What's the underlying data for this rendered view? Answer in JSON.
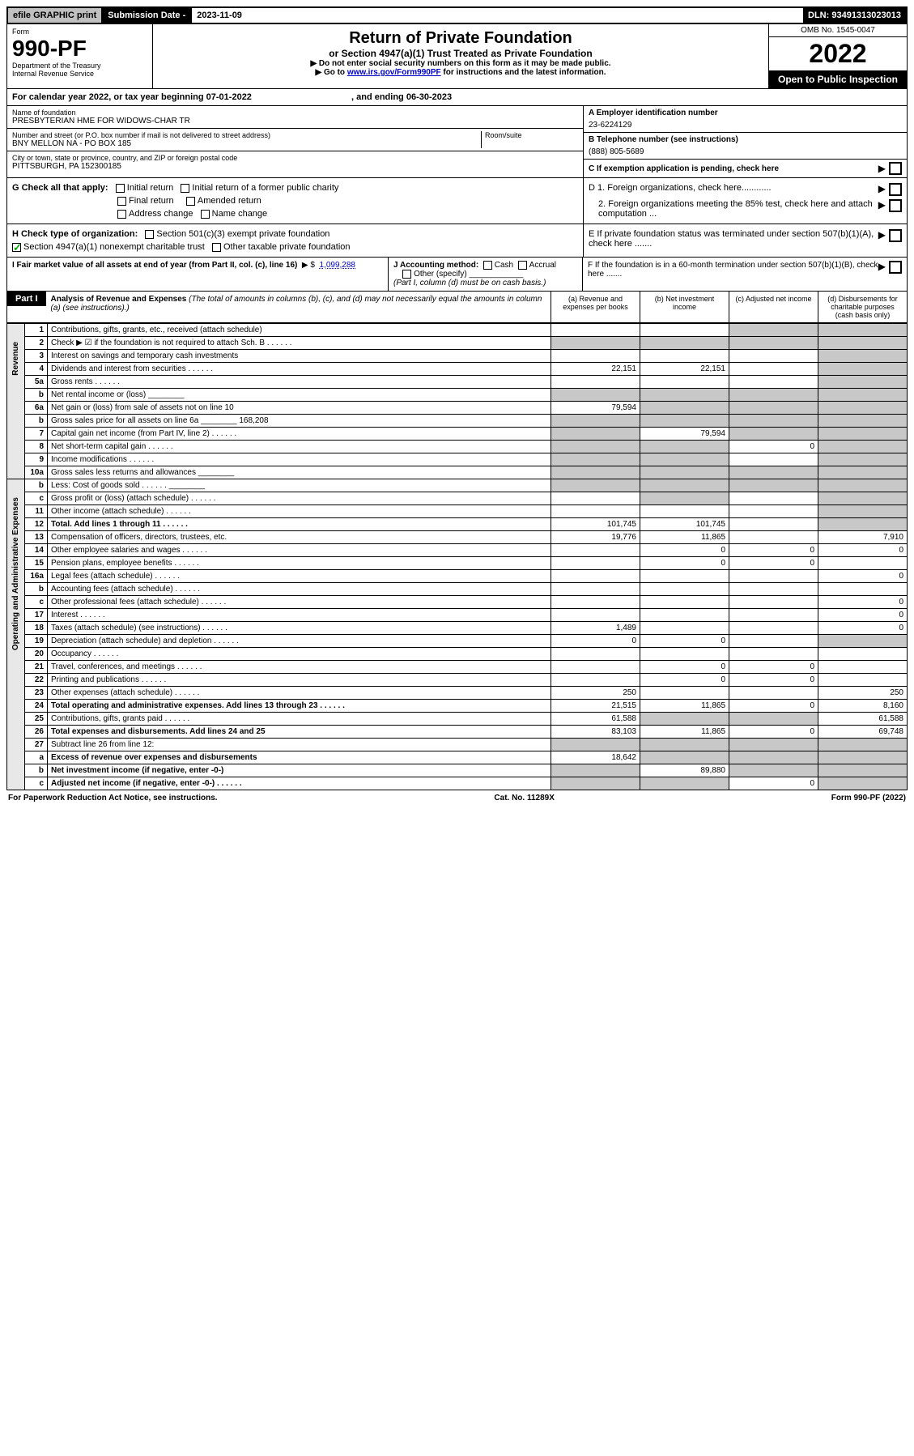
{
  "topbar": {
    "efile": "efile GRAPHIC print",
    "subdate_label": "Submission Date - ",
    "subdate": "2023-11-09",
    "dln": "DLN: 93491313023013"
  },
  "header": {
    "form_word": "Form",
    "form_no": "990-PF",
    "dept": "Department of the Treasury",
    "irs": "Internal Revenue Service",
    "title": "Return of Private Foundation",
    "subtitle": "or Section 4947(a)(1) Trust Treated as Private Foundation",
    "instr1": "▶ Do not enter social security numbers on this form as it may be made public.",
    "instr2_pre": "▶ Go to ",
    "instr2_link": "www.irs.gov/Form990PF",
    "instr2_post": " for instructions and the latest information.",
    "omb": "OMB No. 1545-0047",
    "year": "2022",
    "open": "Open to Public Inspection"
  },
  "cal": {
    "text_a": "For calendar year 2022, or tax year beginning ",
    "begin": "07-01-2022",
    "text_b": " , and ending ",
    "end": "06-30-2023"
  },
  "info": {
    "name_label": "Name of foundation",
    "name": "PRESBYTERIAN HME FOR WIDOWS-CHAR TR",
    "addr_label": "Number and street (or P.O. box number if mail is not delivered to street address)",
    "addr": "BNY MELLON NA - PO BOX 185",
    "room_label": "Room/suite",
    "city_label": "City or town, state or province, country, and ZIP or foreign postal code",
    "city": "PITTSBURGH, PA  152300185",
    "a_label": "A Employer identification number",
    "a": "23-6224129",
    "b_label": "B Telephone number (see instructions)",
    "b": "(888) 805-5689",
    "c_label": "C If exemption application is pending, check here"
  },
  "g": {
    "label": "G Check all that apply:",
    "opts": [
      "Initial return",
      "Initial return of a former public charity",
      "Final return",
      "Amended return",
      "Address change",
      "Name change"
    ]
  },
  "d": {
    "d1": "D 1. Foreign organizations, check here............",
    "d2": "2. Foreign organizations meeting the 85% test, check here and attach computation ..."
  },
  "h": {
    "label": "H Check type of organization:",
    "o1": "Section 501(c)(3) exempt private foundation",
    "o2": "Section 4947(a)(1) nonexempt charitable trust",
    "o3": "Other taxable private foundation"
  },
  "e": "E  If private foundation status was terminated under section 507(b)(1)(A), check here .......",
  "i": {
    "label": "I Fair market value of all assets at end of year (from Part II, col. (c), line 16)",
    "val": "1,099,288"
  },
  "j": {
    "label": "J Accounting method:",
    "o1": "Cash",
    "o2": "Accrual",
    "o3": "Other (specify)",
    "note": "(Part I, column (d) must be on cash basis.)"
  },
  "f": "F  If the foundation is in a 60-month termination under section 507(b)(1)(B), check here .......",
  "part1": {
    "label": "Part I",
    "title": "Analysis of Revenue and Expenses",
    "note": "(The total of amounts in columns (b), (c), and (d) may not necessarily equal the amounts in column (a) (see instructions).)",
    "cols": [
      "(a)  Revenue and expenses per books",
      "(b)  Net investment income",
      "(c)  Adjusted net income",
      "(d)  Disbursements for charitable purposes (cash basis only)"
    ]
  },
  "side": {
    "rev": "Revenue",
    "exp": "Operating and Administrative Expenses"
  },
  "rows": [
    {
      "n": "1",
      "d": "Contributions, gifts, grants, etc., received (attach schedule)",
      "a": "",
      "b": "",
      "c": "g",
      "dd": "g"
    },
    {
      "n": "2",
      "d": "Check ▶ ☑ if the foundation is not required to attach Sch. B",
      "dots": true,
      "a": "g",
      "b": "g",
      "c": "g",
      "dd": "g"
    },
    {
      "n": "3",
      "d": "Interest on savings and temporary cash investments",
      "a": "",
      "b": "",
      "c": "",
      "dd": "g"
    },
    {
      "n": "4",
      "d": "Dividends and interest from securities",
      "dots": true,
      "a": "22,151",
      "b": "22,151",
      "c": "",
      "dd": "g"
    },
    {
      "n": "5a",
      "d": "Gross rents",
      "dots": true,
      "a": "",
      "b": "",
      "c": "",
      "dd": "g"
    },
    {
      "n": "b",
      "d": "Net rental income or (loss)",
      "inline": "",
      "a": "g",
      "b": "g",
      "c": "g",
      "dd": "g"
    },
    {
      "n": "6a",
      "d": "Net gain or (loss) from sale of assets not on line 10",
      "a": "79,594",
      "b": "g",
      "c": "g",
      "dd": "g"
    },
    {
      "n": "b",
      "d": "Gross sales price for all assets on line 6a",
      "inline": "168,208",
      "a": "g",
      "b": "g",
      "c": "g",
      "dd": "g"
    },
    {
      "n": "7",
      "d": "Capital gain net income (from Part IV, line 2)",
      "dots": true,
      "a": "g",
      "b": "79,594",
      "c": "g",
      "dd": "g"
    },
    {
      "n": "8",
      "d": "Net short-term capital gain",
      "dots": true,
      "a": "g",
      "b": "g",
      "c": "0",
      "dd": "g"
    },
    {
      "n": "9",
      "d": "Income modifications",
      "dots": true,
      "a": "g",
      "b": "g",
      "c": "",
      "dd": "g"
    },
    {
      "n": "10a",
      "d": "Gross sales less returns and allowances",
      "inline": "",
      "a": "g",
      "b": "g",
      "c": "g",
      "dd": "g"
    },
    {
      "n": "b",
      "d": "Less: Cost of goods sold",
      "dots": true,
      "inline": "",
      "a": "g",
      "b": "g",
      "c": "g",
      "dd": "g"
    },
    {
      "n": "c",
      "d": "Gross profit or (loss) (attach schedule)",
      "dots": true,
      "a": "",
      "b": "g",
      "c": "",
      "dd": "g"
    },
    {
      "n": "11",
      "d": "Other income (attach schedule)",
      "dots": true,
      "a": "",
      "b": "",
      "c": "",
      "dd": "g"
    },
    {
      "n": "12",
      "d": "Total. Add lines 1 through 11",
      "dots": true,
      "bold": true,
      "a": "101,745",
      "b": "101,745",
      "c": "",
      "dd": "g"
    },
    {
      "n": "13",
      "d": "Compensation of officers, directors, trustees, etc.",
      "a": "19,776",
      "b": "11,865",
      "c": "",
      "dd": "7,910"
    },
    {
      "n": "14",
      "d": "Other employee salaries and wages",
      "dots": true,
      "a": "",
      "b": "0",
      "c": "0",
      "dd": "0"
    },
    {
      "n": "15",
      "d": "Pension plans, employee benefits",
      "dots": true,
      "a": "",
      "b": "0",
      "c": "0",
      "dd": ""
    },
    {
      "n": "16a",
      "d": "Legal fees (attach schedule)",
      "dots": true,
      "a": "",
      "b": "",
      "c": "",
      "dd": "0"
    },
    {
      "n": "b",
      "d": "Accounting fees (attach schedule)",
      "dots": true,
      "a": "",
      "b": "",
      "c": "",
      "dd": ""
    },
    {
      "n": "c",
      "d": "Other professional fees (attach schedule)",
      "dots": true,
      "a": "",
      "b": "",
      "c": "",
      "dd": "0"
    },
    {
      "n": "17",
      "d": "Interest",
      "dots": true,
      "a": "",
      "b": "",
      "c": "",
      "dd": "0"
    },
    {
      "n": "18",
      "d": "Taxes (attach schedule) (see instructions)",
      "dots": true,
      "a": "1,489",
      "b": "",
      "c": "",
      "dd": "0"
    },
    {
      "n": "19",
      "d": "Depreciation (attach schedule) and depletion",
      "dots": true,
      "a": "0",
      "b": "0",
      "c": "",
      "dd": "g"
    },
    {
      "n": "20",
      "d": "Occupancy",
      "dots": true,
      "a": "",
      "b": "",
      "c": "",
      "dd": ""
    },
    {
      "n": "21",
      "d": "Travel, conferences, and meetings",
      "dots": true,
      "a": "",
      "b": "0",
      "c": "0",
      "dd": ""
    },
    {
      "n": "22",
      "d": "Printing and publications",
      "dots": true,
      "a": "",
      "b": "0",
      "c": "0",
      "dd": ""
    },
    {
      "n": "23",
      "d": "Other expenses (attach schedule)",
      "dots": true,
      "a": "250",
      "b": "",
      "c": "",
      "dd": "250"
    },
    {
      "n": "24",
      "d": "Total operating and administrative expenses. Add lines 13 through 23",
      "dots": true,
      "bold": true,
      "a": "21,515",
      "b": "11,865",
      "c": "0",
      "dd": "8,160"
    },
    {
      "n": "25",
      "d": "Contributions, gifts, grants paid",
      "dots": true,
      "a": "61,588",
      "b": "g",
      "c": "g",
      "dd": "61,588"
    },
    {
      "n": "26",
      "d": "Total expenses and disbursements. Add lines 24 and 25",
      "bold": true,
      "a": "83,103",
      "b": "11,865",
      "c": "0",
      "dd": "69,748"
    },
    {
      "n": "27",
      "d": "Subtract line 26 from line 12:",
      "a": "g",
      "b": "g",
      "c": "g",
      "dd": "g"
    },
    {
      "n": "a",
      "d": "Excess of revenue over expenses and disbursements",
      "bold": true,
      "a": "18,642",
      "b": "g",
      "c": "g",
      "dd": "g"
    },
    {
      "n": "b",
      "d": "Net investment income (if negative, enter -0-)",
      "bold": true,
      "a": "g",
      "b": "89,880",
      "c": "g",
      "dd": "g"
    },
    {
      "n": "c",
      "d": "Adjusted net income (if negative, enter -0-)",
      "dots": true,
      "bold": true,
      "a": "g",
      "b": "g",
      "c": "0",
      "dd": "g"
    }
  ],
  "footer": {
    "left": "For Paperwork Reduction Act Notice, see instructions.",
    "mid": "Cat. No. 11289X",
    "right": "Form 990-PF (2022)"
  }
}
